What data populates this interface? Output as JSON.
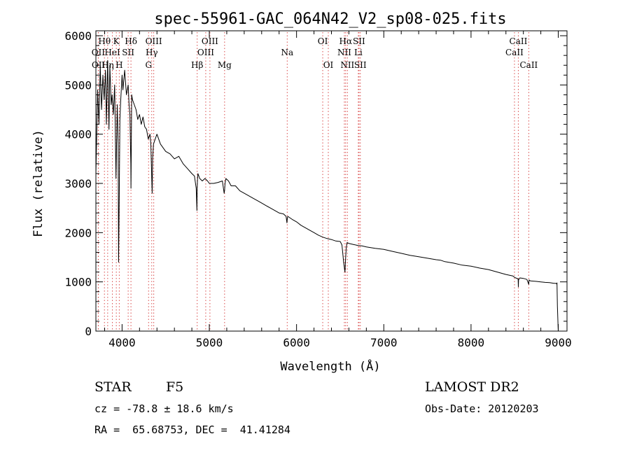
{
  "chart_data": {
    "type": "line",
    "title": "spec-55961-GAC_064N42_V2_sp08-025.fits",
    "xlabel": "Wavelength (Å)",
    "ylabel": "Flux (relative)",
    "xlim": [
      3700,
      9100
    ],
    "ylim": [
      0,
      6100
    ],
    "xticks": [
      4000,
      5000,
      6000,
      7000,
      8000,
      9000
    ],
    "yticks": [
      0,
      1000,
      2000,
      3000,
      4000,
      5000,
      6000
    ],
    "xtick_labels": [
      "4000",
      "5000",
      "6000",
      "7000",
      "8000",
      "9000"
    ],
    "ytick_labels": [
      "0",
      "1000",
      "2000",
      "3000",
      "4000",
      "5000",
      "6000"
    ],
    "grid": false,
    "legend": "none",
    "series": [
      {
        "color": "#000000",
        "x": [
          3700,
          3720,
          3735,
          3750,
          3765,
          3780,
          3795,
          3810,
          3820,
          3835,
          3850,
          3860,
          3875,
          3885,
          3900,
          3915,
          3930,
          3945,
          3955,
          3960,
          3968,
          3975,
          3985,
          4000,
          4010,
          4030,
          4050,
          4070,
          4080,
          4090,
          4100,
          4102,
          4105,
          4110,
          4120,
          4140,
          4160,
          4180,
          4200,
          4220,
          4240,
          4260,
          4280,
          4300,
          4320,
          4330,
          4340,
          4345,
          4350,
          4360,
          4380,
          4400,
          4420,
          4440,
          4460,
          4480,
          4500,
          4550,
          4600,
          4650,
          4700,
          4750,
          4800,
          4830,
          4850,
          4858,
          4861,
          4865,
          4870,
          4890,
          4920,
          4950,
          4980,
          5000,
          5050,
          5100,
          5150,
          5170,
          5175,
          5180,
          5190,
          5220,
          5250,
          5300,
          5350,
          5400,
          5450,
          5500,
          5550,
          5600,
          5650,
          5700,
          5750,
          5800,
          5850,
          5880,
          5890,
          5893,
          5896,
          5900,
          5950,
          6000,
          6050,
          6100,
          6150,
          6200,
          6250,
          6300,
          6350,
          6400,
          6450,
          6500,
          6520,
          6540,
          6555,
          6563,
          6570,
          6580,
          6600,
          6650,
          6700,
          6750,
          6800,
          6900,
          7000,
          7100,
          7200,
          7300,
          7400,
          7500,
          7600,
          7650,
          7700,
          7800,
          7900,
          8000,
          8100,
          8200,
          8300,
          8400,
          8480,
          8500,
          8540,
          8542,
          8545,
          8560,
          8600,
          8640,
          8662,
          8665,
          8680,
          8750,
          8800,
          8850,
          8900,
          8950,
          8970,
          8980,
          8985,
          8990,
          9000
        ],
        "y": [
          3200,
          4900,
          4200,
          5400,
          4500,
          5200,
          4700,
          5300,
          4200,
          5500,
          4100,
          5400,
          4600,
          4800,
          4400,
          5000,
          3100,
          4600,
          3800,
          1400,
          2800,
          4300,
          4700,
          5200,
          4900,
          5300,
          4800,
          5000,
          4600,
          4400,
          3400,
          2900,
          3600,
          4800,
          4700,
          4600,
          4500,
          4300,
          4400,
          4200,
          4350,
          4150,
          4100,
          3900,
          4000,
          3800,
          3100,
          2800,
          3500,
          3800,
          3900,
          4000,
          3900,
          3800,
          3750,
          3700,
          3650,
          3600,
          3500,
          3550,
          3400,
          3300,
          3200,
          3150,
          2900,
          2450,
          2900,
          3100,
          3200,
          3100,
          3050,
          3100,
          3050,
          3000,
          3000,
          3020,
          3050,
          2800,
          2850,
          3000,
          3100,
          3050,
          2950,
          2950,
          2850,
          2800,
          2750,
          2700,
          2650,
          2600,
          2550,
          2500,
          2450,
          2400,
          2380,
          2330,
          2200,
          2260,
          2310,
          2330,
          2270,
          2220,
          2150,
          2100,
          2050,
          2000,
          1950,
          1910,
          1880,
          1860,
          1830,
          1820,
          1750,
          1400,
          1200,
          1500,
          1700,
          1800,
          1780,
          1760,
          1740,
          1730,
          1710,
          1680,
          1660,
          1620,
          1580,
          1540,
          1510,
          1480,
          1450,
          1440,
          1410,
          1380,
          1340,
          1320,
          1280,
          1250,
          1200,
          1150,
          1120,
          1090,
          1060,
          900,
          1040,
          1080,
          1070,
          1050,
          950,
          1040,
          1020,
          1010,
          1000,
          990,
          985,
          970,
          970,
          960,
          980,
          500,
          0
        ]
      }
    ],
    "line_markers": [
      {
        "label": "Hθ",
        "x": 3798,
        "row": 1
      },
      {
        "label": "K",
        "x": 3934,
        "row": 1
      },
      {
        "label": "Hδ",
        "x": 4102,
        "row": 1
      },
      {
        "label": "OIII",
        "x": 4363,
        "row": 1
      },
      {
        "label": "OIII",
        "x": 5007,
        "row": 1
      },
      {
        "label": "OI",
        "x": 6300,
        "row": 1
      },
      {
        "label": "Hα",
        "x": 6563,
        "row": 1
      },
      {
        "label": "SII",
        "x": 6716,
        "row": 1
      },
      {
        "label": "CaII",
        "x": 8542,
        "row": 1
      },
      {
        "label": "OII",
        "x": 3727,
        "row": 2
      },
      {
        "label": "HeI",
        "x": 3889,
        "row": 2
      },
      {
        "label": "SII",
        "x": 4070,
        "row": 2
      },
      {
        "label": "Hγ",
        "x": 4340,
        "row": 2
      },
      {
        "label": "OIII",
        "x": 4959,
        "row": 2
      },
      {
        "label": "Na",
        "x": 5893,
        "row": 2
      },
      {
        "label": "NII",
        "x": 6548,
        "row": 2
      },
      {
        "label": "Li",
        "x": 6708,
        "row": 2
      },
      {
        "label": "CaII",
        "x": 8498,
        "row": 2
      },
      {
        "label": "OII",
        "x": 3729,
        "row": 3
      },
      {
        "label": "Hη",
        "x": 3835,
        "row": 3
      },
      {
        "label": "H",
        "x": 3968,
        "row": 3
      },
      {
        "label": "G",
        "x": 4304,
        "row": 3
      },
      {
        "label": "Hβ",
        "x": 4861,
        "row": 3
      },
      {
        "label": "Mg",
        "x": 5175,
        "row": 3
      },
      {
        "label": "OI",
        "x": 6364,
        "row": 3
      },
      {
        "label": "NII",
        "x": 6583,
        "row": 3
      },
      {
        "label": "SII",
        "x": 6731,
        "row": 3
      },
      {
        "label": "CaII",
        "x": 8662,
        "row": 3
      }
    ]
  },
  "info": {
    "object_class": "STAR",
    "subclass": "F5",
    "survey": "LAMOST DR2",
    "redshift": "cz = -78.8 ± 18.6 km/s",
    "obs_date": "Obs-Date: 20120203",
    "coords": "RA =  65.68753, DEC =  41.41284"
  }
}
